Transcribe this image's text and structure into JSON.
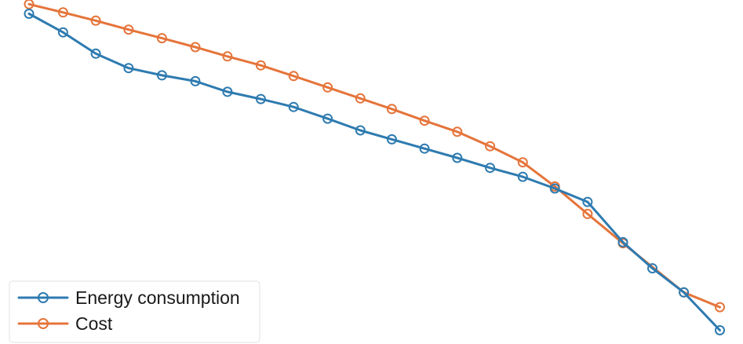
{
  "chart_data": {
    "type": "line",
    "title": "",
    "xlabel": "",
    "ylabel": "",
    "grid": false,
    "legend_position": "bottom-left",
    "series": [
      {
        "name": "Energy consumption",
        "color": "#2e7bb0",
        "points": [
          [
            0.0,
            0.96
          ],
          [
            0.052,
            0.906
          ],
          [
            0.102,
            0.844
          ],
          [
            0.152,
            0.802
          ],
          [
            0.203,
            0.781
          ],
          [
            0.254,
            0.764
          ],
          [
            0.303,
            0.733
          ],
          [
            0.354,
            0.712
          ],
          [
            0.404,
            0.689
          ],
          [
            0.456,
            0.655
          ],
          [
            0.506,
            0.621
          ],
          [
            0.554,
            0.595
          ],
          [
            0.604,
            0.568
          ],
          [
            0.654,
            0.541
          ],
          [
            0.704,
            0.512
          ],
          [
            0.754,
            0.486
          ],
          [
            0.803,
            0.452
          ],
          [
            0.853,
            0.413
          ],
          [
            0.907,
            0.296
          ],
          [
            0.952,
            0.22
          ],
          [
            1.0,
            0.15
          ],
          [
            1.055,
            0.04
          ]
        ]
      },
      {
        "name": "Cost",
        "color": "#e5743a",
        "points": [
          [
            0.0,
            0.988
          ],
          [
            0.052,
            0.964
          ],
          [
            0.102,
            0.94
          ],
          [
            0.152,
            0.914
          ],
          [
            0.203,
            0.889
          ],
          [
            0.254,
            0.863
          ],
          [
            0.303,
            0.836
          ],
          [
            0.354,
            0.81
          ],
          [
            0.404,
            0.779
          ],
          [
            0.456,
            0.746
          ],
          [
            0.506,
            0.714
          ],
          [
            0.554,
            0.683
          ],
          [
            0.604,
            0.649
          ],
          [
            0.654,
            0.617
          ],
          [
            0.704,
            0.575
          ],
          [
            0.754,
            0.528
          ],
          [
            0.803,
            0.458
          ],
          [
            0.853,
            0.378
          ],
          [
            0.907,
            0.293
          ],
          [
            1.0,
            0.15
          ],
          [
            1.055,
            0.107
          ]
        ]
      }
    ]
  }
}
